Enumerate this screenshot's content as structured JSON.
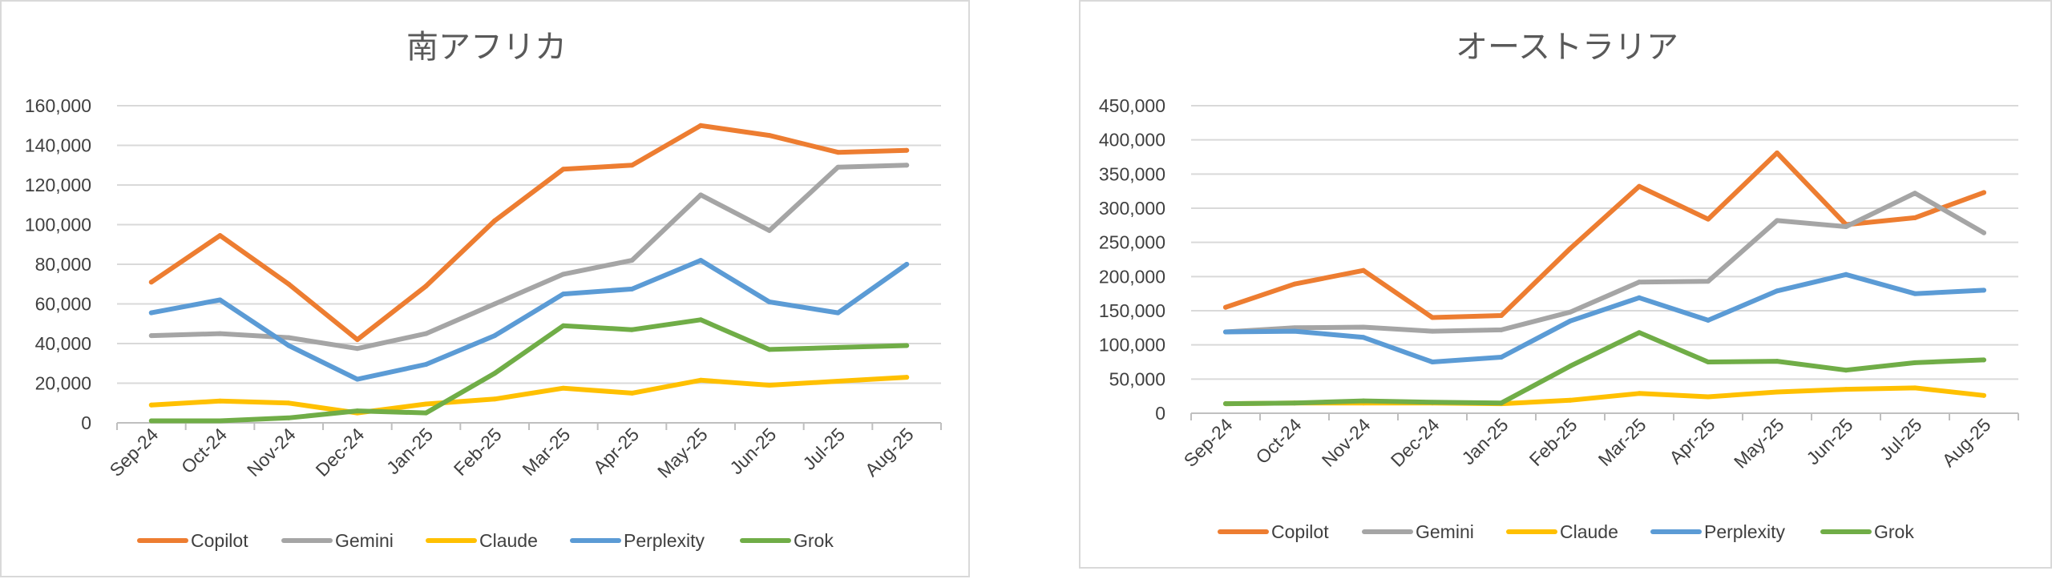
{
  "chart_data": [
    {
      "type": "line",
      "title": "南アフリカ",
      "categories": [
        "Sep-24",
        "Oct-24",
        "Nov-24",
        "Dec-24",
        "Jan-25",
        "Feb-25",
        "Mar-25",
        "Apr-25",
        "May-25",
        "Jun-25",
        "Jul-25",
        "Aug-25"
      ],
      "ylim": [
        0,
        160000
      ],
      "yticks": [
        0,
        20000,
        40000,
        60000,
        80000,
        100000,
        120000,
        140000,
        160000
      ],
      "ytick_labels": [
        "0",
        "20,000",
        "40,000",
        "60,000",
        "80,000",
        "100,000",
        "120,000",
        "140,000",
        "160,000"
      ],
      "grid": true,
      "legend": "bottom",
      "series": [
        {
          "name": "Copilot",
          "color": "#ED7D31",
          "values": [
            71000,
            94500,
            70000,
            42000,
            69000,
            102000,
            128000,
            130000,
            150000,
            145000,
            136500,
            137500
          ]
        },
        {
          "name": "Gemini",
          "color": "#A5A5A5",
          "values": [
            44000,
            45000,
            43000,
            37500,
            45000,
            60000,
            75000,
            82000,
            115000,
            97000,
            129000,
            130000
          ]
        },
        {
          "name": "Claude",
          "color": "#FFC000",
          "values": [
            9000,
            11000,
            10000,
            5000,
            9500,
            12000,
            17500,
            15000,
            21500,
            19000,
            21000,
            23000
          ]
        },
        {
          "name": "Perplexity",
          "color": "#5B9BD5",
          "values": [
            55500,
            62000,
            39000,
            22000,
            29500,
            44000,
            65000,
            67500,
            82000,
            61000,
            55500,
            80000
          ]
        },
        {
          "name": "Grok",
          "color": "#70AD47",
          "values": [
            1000,
            1000,
            2500,
            6000,
            5000,
            25000,
            49000,
            47000,
            52000,
            37000,
            38000,
            39000
          ]
        }
      ]
    },
    {
      "type": "line",
      "title": "オーストラリア",
      "categories": [
        "Sep-24",
        "Oct-24",
        "Nov-24",
        "Dec-24",
        "Jan-25",
        "Feb-25",
        "Mar-25",
        "Apr-25",
        "May-25",
        "Jun-25",
        "Jul-25",
        "Aug-25"
      ],
      "ylim": [
        0,
        450000
      ],
      "yticks": [
        0,
        50000,
        100000,
        150000,
        200000,
        250000,
        300000,
        350000,
        400000,
        450000
      ],
      "ytick_labels": [
        "0",
        "50,000",
        "100,000",
        "150,000",
        "200,000",
        "250,000",
        "300,000",
        "350,000",
        "400,000",
        "450,000"
      ],
      "grid": true,
      "legend": "bottom",
      "series": [
        {
          "name": "Copilot",
          "color": "#ED7D31",
          "values": [
            155000,
            189000,
            209000,
            140000,
            143000,
            241000,
            332000,
            284000,
            381000,
            276000,
            286000,
            323000
          ]
        },
        {
          "name": "Gemini",
          "color": "#A5A5A5",
          "values": [
            119000,
            125000,
            126000,
            120000,
            122000,
            148000,
            192000,
            193000,
            282000,
            273000,
            322000,
            264000
          ]
        },
        {
          "name": "Claude",
          "color": "#FFC000",
          "values": [
            14000,
            15000,
            15000,
            15000,
            14000,
            19000,
            29000,
            24000,
            31000,
            35000,
            37000,
            26000
          ]
        },
        {
          "name": "Perplexity",
          "color": "#5B9BD5",
          "values": [
            119000,
            120000,
            111000,
            75000,
            82000,
            135000,
            169000,
            136000,
            179000,
            203000,
            175000,
            180000
          ]
        },
        {
          "name": "Grok",
          "color": "#70AD47",
          "values": [
            14000,
            15000,
            18000,
            16000,
            15000,
            69000,
            118000,
            75000,
            76000,
            63000,
            74000,
            78000
          ]
        }
      ]
    }
  ]
}
